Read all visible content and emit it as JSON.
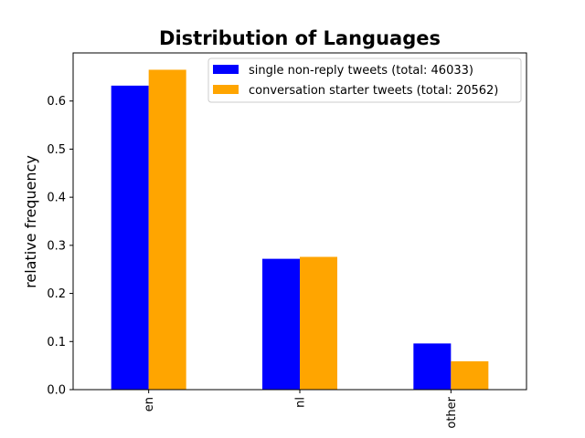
{
  "chart_data": {
    "type": "bar",
    "title": "Distribution of Languages",
    "xlabel": "",
    "ylabel": "relative frequency",
    "categories": [
      "en",
      "nl",
      "other"
    ],
    "series": [
      {
        "name": "single non-reply tweets (total: 46033)",
        "values": [
          0.632,
          0.272,
          0.096
        ],
        "color": "#0000ff"
      },
      {
        "name": "conversation starter tweets (total: 20562)",
        "values": [
          0.665,
          0.276,
          0.059
        ],
        "color": "#ffa500"
      }
    ],
    "ylim": [
      0,
      0.7
    ],
    "yticks": [
      "0.0",
      "0.1",
      "0.2",
      "0.3",
      "0.4",
      "0.5",
      "0.6"
    ],
    "grid": false,
    "legend_position": "top-right"
  }
}
